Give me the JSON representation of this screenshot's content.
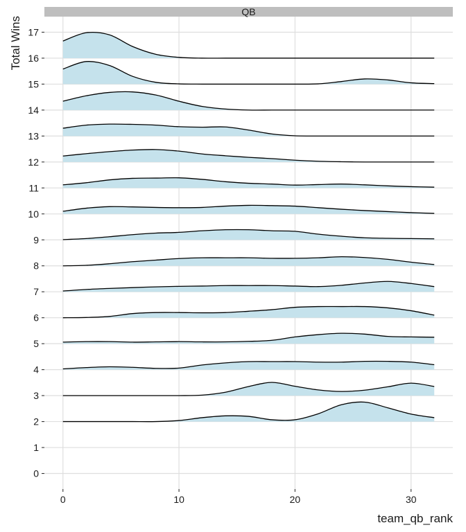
{
  "chart_data": {
    "type": "ridgeline",
    "facet_label": "QB",
    "xlabel": "team_qb_rank",
    "ylabel": "Total Wins",
    "xlim": [
      -1.6,
      33.6
    ],
    "ylim": [
      -0.6,
      17.6
    ],
    "x_ticks": [
      0,
      10,
      20,
      30
    ],
    "y_ticks": [
      0,
      1,
      2,
      3,
      4,
      5,
      6,
      7,
      8,
      9,
      10,
      11,
      12,
      13,
      14,
      15,
      16,
      17
    ],
    "grid": true,
    "fill_color": "#c5e2ec",
    "line_color": "#000000",
    "grid_color": "#dedede",
    "strip_color": "#bebebe",
    "density_x": [
      0,
      2,
      4,
      6,
      8,
      10,
      12,
      14,
      16,
      18,
      20,
      22,
      24,
      26,
      28,
      30,
      32
    ],
    "series": [
      {
        "wins": 17,
        "heights": [
          0,
          0,
          0,
          0,
          0,
          0,
          0,
          0,
          0,
          0,
          0,
          0,
          0,
          0,
          0,
          0,
          0
        ]
      },
      {
        "wins": 16,
        "heights": [
          0.66,
          0.98,
          0.9,
          0.45,
          0.15,
          0.03,
          0,
          0,
          0,
          0,
          0,
          0,
          0,
          0,
          0,
          0,
          0
        ]
      },
      {
        "wins": 15,
        "heights": [
          0.58,
          0.87,
          0.72,
          0.3,
          0.07,
          0.01,
          0,
          0,
          0,
          0,
          0,
          0.01,
          0.1,
          0.2,
          0.16,
          0.05,
          0.02
        ]
      },
      {
        "wins": 14,
        "heights": [
          0.34,
          0.55,
          0.68,
          0.7,
          0.58,
          0.34,
          0.14,
          0.04,
          0,
          0,
          0,
          0,
          0,
          0,
          0,
          0,
          0
        ]
      },
      {
        "wins": 13,
        "heights": [
          0.3,
          0.42,
          0.46,
          0.45,
          0.42,
          0.36,
          0.34,
          0.35,
          0.23,
          0.08,
          0.01,
          0,
          0,
          0,
          0,
          0,
          0
        ]
      },
      {
        "wins": 12,
        "heights": [
          0.23,
          0.32,
          0.4,
          0.46,
          0.48,
          0.42,
          0.31,
          0.24,
          0.18,
          0.13,
          0.07,
          0.03,
          0.01,
          0,
          0,
          0,
          0
        ]
      },
      {
        "wins": 11,
        "heights": [
          0.12,
          0.2,
          0.31,
          0.37,
          0.38,
          0.39,
          0.33,
          0.24,
          0.18,
          0.15,
          0.11,
          0.13,
          0.15,
          0.12,
          0.08,
          0.05,
          0.03
        ]
      },
      {
        "wins": 10,
        "heights": [
          0.1,
          0.22,
          0.28,
          0.27,
          0.25,
          0.24,
          0.25,
          0.3,
          0.33,
          0.32,
          0.3,
          0.24,
          0.18,
          0.13,
          0.09,
          0.05,
          0.02
        ]
      },
      {
        "wins": 9,
        "heights": [
          0.01,
          0.05,
          0.12,
          0.2,
          0.26,
          0.29,
          0.35,
          0.39,
          0.39,
          0.35,
          0.33,
          0.22,
          0.14,
          0.08,
          0.06,
          0.05,
          0.04
        ]
      },
      {
        "wins": 8,
        "heights": [
          0,
          0.02,
          0.08,
          0.16,
          0.22,
          0.28,
          0.31,
          0.31,
          0.31,
          0.29,
          0.29,
          0.31,
          0.35,
          0.32,
          0.25,
          0.14,
          0.05
        ]
      },
      {
        "wins": 7,
        "heights": [
          0.03,
          0.09,
          0.13,
          0.16,
          0.19,
          0.21,
          0.22,
          0.24,
          0.24,
          0.24,
          0.22,
          0.2,
          0.25,
          0.34,
          0.4,
          0.32,
          0.2
        ]
      },
      {
        "wins": 6,
        "heights": [
          0,
          0.01,
          0.05,
          0.16,
          0.2,
          0.2,
          0.19,
          0.2,
          0.25,
          0.31,
          0.4,
          0.43,
          0.43,
          0.43,
          0.38,
          0.27,
          0.1
        ]
      },
      {
        "wins": 5,
        "heights": [
          0.06,
          0.08,
          0.08,
          0.06,
          0.07,
          0.08,
          0.07,
          0.07,
          0.09,
          0.13,
          0.26,
          0.35,
          0.4,
          0.37,
          0.28,
          0.26,
          0.25
        ]
      },
      {
        "wins": 4,
        "heights": [
          0.03,
          0.08,
          0.11,
          0.09,
          0.05,
          0.06,
          0.18,
          0.26,
          0.31,
          0.31,
          0.31,
          0.29,
          0.29,
          0.32,
          0.32,
          0.29,
          0.19
        ]
      },
      {
        "wins": 3,
        "heights": [
          0,
          0,
          0,
          0,
          0,
          0,
          0.02,
          0.13,
          0.35,
          0.51,
          0.36,
          0.22,
          0.16,
          0.21,
          0.34,
          0.48,
          0.35
        ]
      },
      {
        "wins": 2,
        "heights": [
          0,
          0,
          0,
          0,
          0,
          0.04,
          0.15,
          0.22,
          0.2,
          0.07,
          0.07,
          0.3,
          0.65,
          0.75,
          0.53,
          0.29,
          0.15
        ]
      },
      {
        "wins": 1,
        "heights": [
          0,
          0,
          0,
          0,
          0,
          0,
          0,
          0,
          0,
          0,
          0,
          0,
          0,
          0,
          0,
          0,
          0
        ]
      },
      {
        "wins": 0,
        "heights": [
          0,
          0,
          0,
          0,
          0,
          0,
          0,
          0,
          0,
          0,
          0,
          0,
          0,
          0,
          0,
          0,
          0
        ]
      }
    ]
  }
}
